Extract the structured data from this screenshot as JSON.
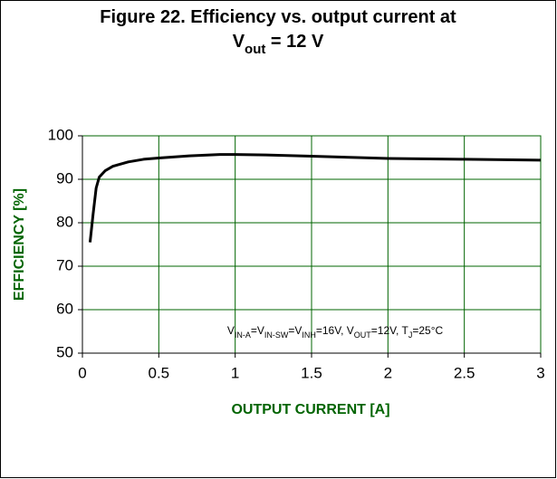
{
  "chart_data": {
    "type": "line",
    "title": [
      {
        "text": "Figure 22. Efficiency vs. output current at"
      },
      {
        "text": "V",
        "line": 2
      },
      {
        "text": "out",
        "line": 2,
        "sub": true
      },
      {
        "text": " = 12 V",
        "line": 2
      }
    ],
    "annotation": [
      {
        "text": "V"
      },
      {
        "text": "IN-A",
        "sub": true
      },
      {
        "text": "=V"
      },
      {
        "text": "IN-SW",
        "sub": true
      },
      {
        "text": "=V"
      },
      {
        "text": "INH",
        "sub": true
      },
      {
        "text": "=16V, V"
      },
      {
        "text": "OUT",
        "sub": true
      },
      {
        "text": "=12V, T"
      },
      {
        "text": "J",
        "sub": true
      },
      {
        "text": "=25°C"
      }
    ],
    "xlabel": "OUTPUT CURRENT [A]",
    "ylabel": "EFFICIENCY [%]",
    "xlim": [
      0,
      3
    ],
    "xticks": [
      0,
      0.5,
      1,
      1.5,
      2,
      2.5,
      3
    ],
    "ylim": [
      50,
      100
    ],
    "yticks": [
      50,
      60,
      70,
      80,
      90,
      100
    ],
    "grid": true,
    "grid_color": "#006400",
    "label_color": "#006400",
    "series": [
      {
        "name": "Efficiency",
        "color": "#000000",
        "x": [
          0.05,
          0.07,
          0.09,
          0.11,
          0.15,
          0.2,
          0.3,
          0.4,
          0.5,
          0.7,
          0.9,
          1.0,
          1.2,
          1.5,
          1.8,
          2.0,
          2.5,
          3.0
        ],
        "values": [
          75.5,
          82,
          88,
          90.5,
          92,
          93,
          94,
          94.6,
          94.9,
          95.4,
          95.7,
          95.7,
          95.6,
          95.3,
          95.0,
          94.8,
          94.6,
          94.4
        ]
      }
    ]
  }
}
